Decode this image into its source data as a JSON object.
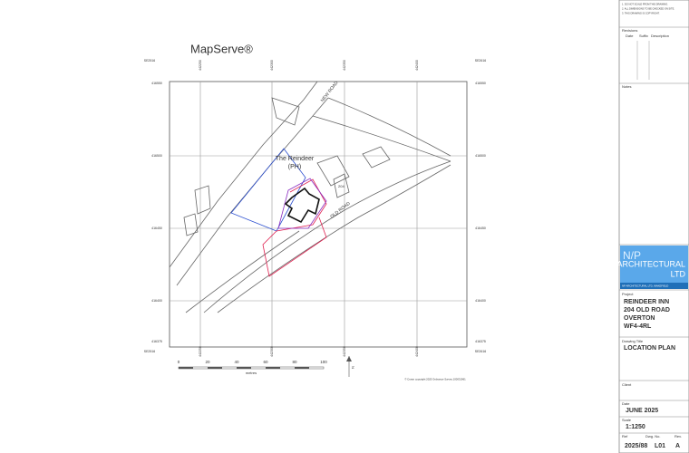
{
  "map": {
    "brand": "MapServe®",
    "top_labels": [
      "SE2516",
      "442250",
      "442300",
      "442350",
      "442400",
      "SE2616"
    ],
    "bottom_labels": [
      "SE2516",
      "442250",
      "442300",
      "442350",
      "442400",
      "SE2616"
    ],
    "left_labels": [
      "416550",
      "416500",
      "416450",
      "416400",
      "416375"
    ],
    "right_labels": [
      "416550",
      "416500",
      "416450",
      "416400",
      "416375"
    ],
    "building_name": "The Reindeer",
    "building_type": "(PH)",
    "new_road": "NEW ROAD",
    "old_road": "OLD ROAD",
    "house_number": "204",
    "copyright": "© Crown copyright 2025 Ordnance Survey 100031961"
  },
  "scale_bar": {
    "ticks": [
      "0",
      "20",
      "40",
      "60",
      "80",
      "100"
    ],
    "unit": "metres"
  },
  "north_arrow": "N",
  "title_block": {
    "notes_lines": [
      "1. DO NOT SCALE FROM THIS DRAWING.",
      "2. ALL DIMENSIONS TO BE CHECKED ON SITE.",
      "3. THIS DRAWING IS COPYRIGHT."
    ],
    "revisions": "Revisions",
    "rev_date": "Date",
    "rev_suffix": "Suffix",
    "rev_description": "Description",
    "notes": "Notes",
    "logo_mark": "N/P",
    "logo_line1": "ARCHITECTURAL",
    "logo_line2": "LTD",
    "logo_address": "NP ARCHITECTURAL LTD, WAKEFIELD",
    "project_label": "Project",
    "project_lines": [
      "REINDEER INN",
      "204 OLD ROAD",
      "OVERTON",
      "WF4-4RL"
    ],
    "drawing_title_label": "Drawing Title",
    "drawing_title": "LOCATION PLAN",
    "client_label": "Client",
    "date_label": "Date",
    "date": "JUNE 2025",
    "scale_label": "Scale",
    "scale": "1:1250",
    "ref_label": "Ref",
    "dwg_label": "Dwg. No.",
    "rev_label": "Rev.",
    "ref": "2025/88",
    "dwg": "L01",
    "rev": "A"
  }
}
